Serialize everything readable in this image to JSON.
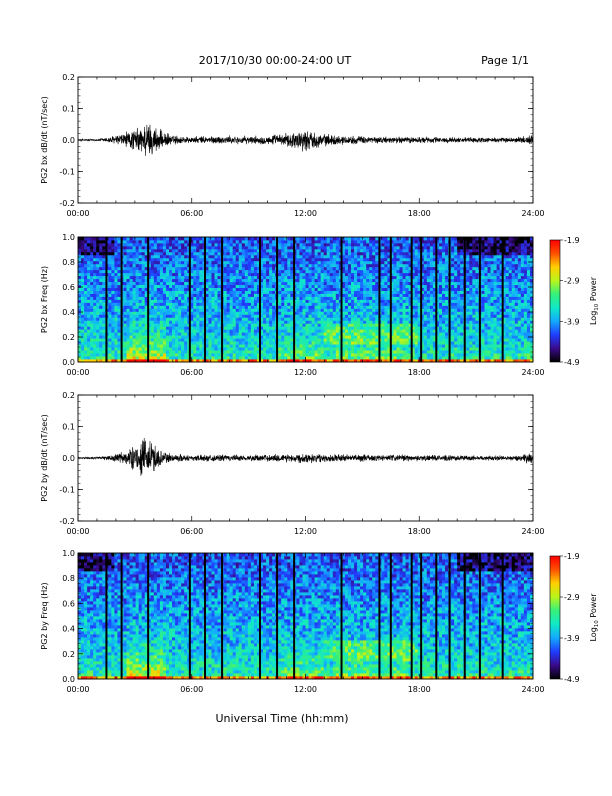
{
  "header": {
    "title": "2017/10/30  00:00-24:00 UT",
    "page": "Page 1/1"
  },
  "x_title": "Universal Time (hh:mm)",
  "colors": {
    "trace": "#000000",
    "colorbar_stops": [
      "#000000",
      "#3a0a8a",
      "#1f3dff",
      "#14a8ff",
      "#10e8c8",
      "#36f07a",
      "#b9f51c",
      "#ffd000",
      "#ff5000",
      "#ff0000"
    ]
  },
  "colorbar": {
    "ticks": [
      "-1.9",
      "-2.9",
      "-3.9",
      "-4.9"
    ],
    "label_prefix": "Log",
    "label_sub": "10",
    "label_suffix": " Power"
  },
  "chart_data": [
    {
      "type": "line",
      "id": "bx_dbdt",
      "ylabel": "PG2 bx dB/dt (nT/sec)",
      "ylim": [
        -0.2,
        0.2
      ],
      "yticks": [
        "0.2",
        "0.1",
        "0.0",
        "-0.1",
        "-0.2"
      ],
      "xticks": [
        "00:00",
        "06:00",
        "12:00",
        "18:00",
        "24:00"
      ],
      "xlim_hours": [
        0,
        24
      ],
      "envelope": {
        "hours": [
          0,
          1,
          1.5,
          2,
          2.5,
          3,
          3.3,
          3.6,
          3.9,
          4.2,
          4.5,
          5,
          6,
          7,
          8,
          9,
          10,
          10.5,
          11,
          11.5,
          12,
          12.5,
          13,
          14,
          15,
          16,
          17,
          18,
          19,
          20,
          21,
          22,
          23,
          23.7,
          24
        ],
        "amplitude": [
          0.003,
          0.004,
          0.01,
          0.018,
          0.03,
          0.04,
          0.05,
          0.07,
          0.06,
          0.045,
          0.03,
          0.018,
          0.012,
          0.015,
          0.015,
          0.014,
          0.016,
          0.02,
          0.025,
          0.035,
          0.04,
          0.03,
          0.022,
          0.016,
          0.014,
          0.012,
          0.012,
          0.012,
          0.011,
          0.01,
          0.01,
          0.009,
          0.009,
          0.018,
          0.02
        ]
      }
    },
    {
      "type": "heatmap",
      "id": "bx_spec",
      "ylabel": "PG2 bx Freq (Hz)",
      "ylim": [
        0.0,
        1.0
      ],
      "yticks": [
        "1.0",
        "0.8",
        "0.6",
        "0.4",
        "0.2",
        "0.0"
      ],
      "xticks": [
        "00:00",
        "06:00",
        "12:00",
        "18:00",
        "24:00"
      ],
      "xlim_hours": [
        0,
        24
      ],
      "zlim": [
        -4.9,
        -1.9
      ],
      "data_gaps_hours": [
        1.5,
        2.3,
        3.7,
        5.9,
        6.7,
        7.6,
        9.6,
        10.5,
        11.4,
        13.9,
        15.9,
        16.5,
        17.6,
        18.1,
        18.9,
        19.6,
        20.4,
        21.2,
        22.4
      ]
    },
    {
      "type": "line",
      "id": "by_dbdt",
      "ylabel": "PG2 by dB/dt (nT/sec)",
      "ylim": [
        -0.2,
        0.2
      ],
      "yticks": [
        "0.2",
        "0.1",
        "0.0",
        "-0.1",
        "-0.2"
      ],
      "xticks": [
        "00:00",
        "06:00",
        "12:00",
        "18:00",
        "24:00"
      ],
      "xlim_hours": [
        0,
        24
      ],
      "envelope": {
        "hours": [
          0,
          1,
          1.5,
          2,
          2.5,
          3,
          3.3,
          3.6,
          3.9,
          4.2,
          4.5,
          5,
          6,
          7,
          8,
          9,
          10,
          10.5,
          11,
          11.5,
          12,
          12.5,
          13,
          14,
          15,
          16,
          17,
          18,
          19,
          20,
          21,
          22,
          23,
          23.7,
          24
        ],
        "amplitude": [
          0.003,
          0.004,
          0.008,
          0.015,
          0.028,
          0.045,
          0.06,
          0.075,
          0.065,
          0.04,
          0.025,
          0.016,
          0.011,
          0.012,
          0.012,
          0.011,
          0.013,
          0.015,
          0.016,
          0.017,
          0.018,
          0.016,
          0.015,
          0.014,
          0.013,
          0.012,
          0.012,
          0.011,
          0.01,
          0.01,
          0.009,
          0.009,
          0.009,
          0.02,
          0.022
        ]
      }
    },
    {
      "type": "heatmap",
      "id": "by_spec",
      "ylabel": "PG2 by Freq (Hz)",
      "ylim": [
        0.0,
        1.0
      ],
      "yticks": [
        "1.0",
        "0.8",
        "0.6",
        "0.4",
        "0.2",
        "0.0"
      ],
      "xticks": [
        "00:00",
        "06:00",
        "12:00",
        "18:00",
        "24:00"
      ],
      "xlim_hours": [
        0,
        24
      ],
      "zlim": [
        -4.9,
        -1.9
      ],
      "data_gaps_hours": [
        1.5,
        2.3,
        3.7,
        5.9,
        6.7,
        7.6,
        9.6,
        10.5,
        11.4,
        13.9,
        15.9,
        16.5,
        17.6,
        18.1,
        18.9,
        19.6,
        20.4,
        21.2,
        22.4
      ]
    }
  ]
}
